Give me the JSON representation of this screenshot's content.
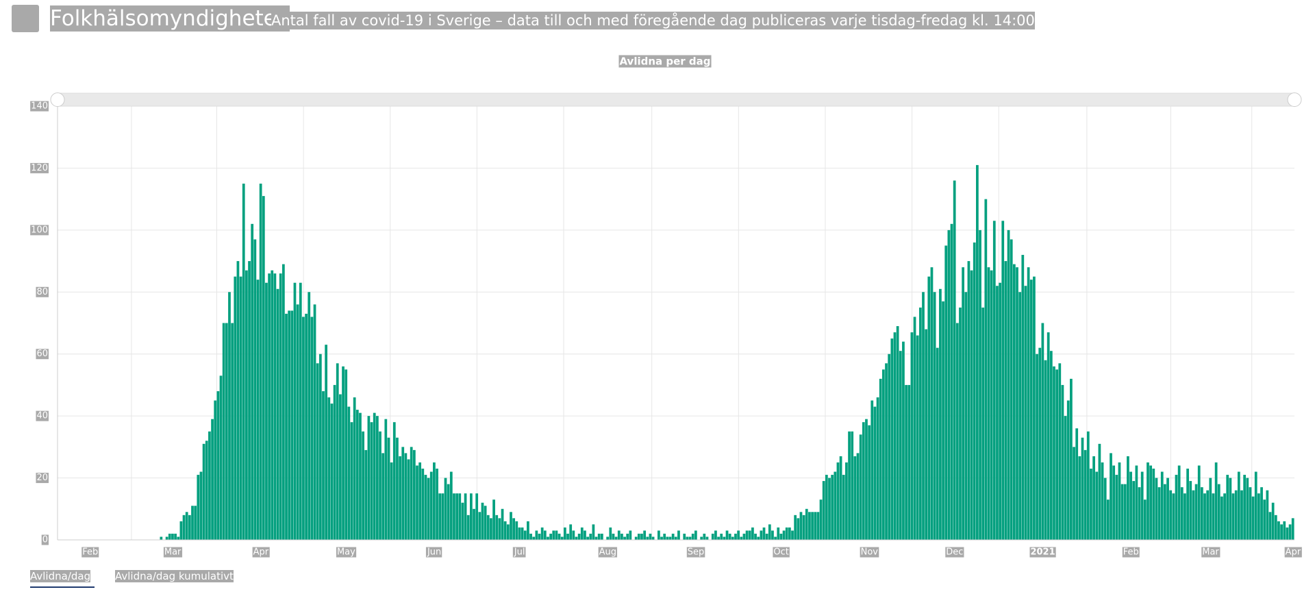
{
  "header": {
    "org": "Folkhälsomyndigheten",
    "subtitle": "Antal fall av covid-19 i Sverige – data till och med föregående dag publiceras varje tisdag-fredag kl. 14:00"
  },
  "chart_data": {
    "type": "bar",
    "title": "Avlidna per dag",
    "color": "#04a07f",
    "ylim": [
      0,
      140
    ],
    "yticks": [
      0,
      20,
      40,
      60,
      80,
      100,
      120,
      140
    ],
    "grid": true,
    "categories": [
      null,
      null,
      null,
      null,
      null,
      null,
      null,
      null,
      null,
      null,
      null,
      "Feb",
      null,
      null,
      null,
      null,
      null,
      null,
      null,
      null,
      null,
      null,
      null,
      null,
      null,
      null,
      null,
      null,
      null,
      null,
      null,
      null,
      null,
      null,
      null,
      null,
      null,
      null,
      null,
      null,
      "Mar",
      null,
      null,
      null,
      null,
      null,
      null,
      null,
      null,
      null,
      null,
      null,
      null,
      null,
      null,
      null,
      null,
      null,
      null,
      null,
      null,
      null,
      null,
      null,
      null,
      null,
      null,
      null,
      null,
      null,
      null,
      "Apr",
      null,
      null,
      null,
      null,
      null,
      null,
      null,
      null,
      null,
      null,
      null,
      null,
      null,
      null,
      null,
      null,
      null,
      null,
      null,
      null,
      null,
      null,
      null,
      null,
      null,
      null,
      null,
      null,
      null,
      "May",
      null,
      null,
      null,
      null,
      null,
      null,
      null,
      null,
      null,
      null,
      null,
      null,
      null,
      null,
      null,
      null,
      null,
      null,
      null,
      null,
      null,
      null,
      null,
      null,
      null,
      null,
      null,
      null,
      null,
      null,
      "Jun",
      null,
      null,
      null,
      null,
      null,
      null,
      null,
      null,
      null,
      null,
      null,
      null,
      null,
      null,
      null,
      null,
      null,
      null,
      null,
      null,
      null,
      null,
      null,
      null,
      null,
      null,
      null,
      null,
      null,
      "Jul",
      null,
      null,
      null,
      null,
      null,
      null,
      null,
      null,
      null,
      null,
      null,
      null,
      null,
      null,
      null,
      null,
      null,
      null,
      null,
      null,
      null,
      null,
      null,
      null,
      null,
      null,
      null,
      null,
      null,
      null,
      "Aug",
      null,
      null,
      null,
      null,
      null,
      null,
      null,
      null,
      null,
      null,
      null,
      null,
      null,
      null,
      null,
      null,
      null,
      null,
      null,
      null,
      null,
      null,
      null,
      null,
      null,
      null,
      null,
      null,
      null,
      null,
      "Sep",
      null,
      null,
      null,
      null,
      null,
      null,
      null,
      null,
      null,
      null,
      null,
      null,
      null,
      null,
      null,
      null,
      null,
      null,
      null,
      null,
      null,
      null,
      null,
      null,
      null,
      null,
      null,
      null,
      null,
      "Oct",
      null,
      null,
      null,
      null,
      null,
      null,
      null,
      null,
      null,
      null,
      null,
      null,
      null,
      null,
      null,
      null,
      null,
      null,
      null,
      null,
      null,
      null,
      null,
      null,
      null,
      null,
      null,
      null,
      null,
      null,
      "Nov",
      null,
      null,
      null,
      null,
      null,
      null,
      null,
      null,
      null,
      null,
      null,
      null,
      null,
      null,
      null,
      null,
      null,
      null,
      null,
      null,
      null,
      null,
      null,
      null,
      null,
      null,
      null,
      null,
      null,
      "Dec",
      null,
      null,
      null,
      null,
      null,
      null,
      null,
      null,
      null,
      null,
      null,
      null,
      null,
      null,
      null,
      null,
      null,
      null,
      null,
      null,
      null,
      null,
      null,
      null,
      null,
      null,
      null,
      null,
      null,
      null,
      "2021",
      null,
      null,
      null,
      null,
      null,
      null,
      null,
      null,
      null,
      null,
      null,
      null,
      null,
      null,
      null,
      null,
      null,
      null,
      null,
      null,
      null,
      null,
      null,
      null,
      null,
      null,
      null,
      null,
      null,
      null,
      "Feb",
      null,
      null,
      null,
      null,
      null,
      null,
      null,
      null,
      null,
      null,
      null,
      null,
      null,
      null,
      null,
      null,
      null,
      null,
      null,
      null,
      null,
      null,
      null,
      null,
      null,
      null,
      null,
      "Mar",
      null,
      null,
      null,
      null,
      null,
      null,
      null,
      null,
      null,
      null,
      null,
      null,
      null,
      null,
      null,
      null,
      null,
      null,
      null,
      null,
      null,
      null,
      null,
      null,
      null,
      null,
      null,
      null,
      "Apr"
    ],
    "values": [
      0,
      0,
      0,
      0,
      0,
      0,
      0,
      0,
      0,
      0,
      0,
      0,
      0,
      0,
      0,
      0,
      0,
      0,
      0,
      0,
      0,
      0,
      0,
      0,
      0,
      0,
      0,
      0,
      0,
      0,
      0,
      0,
      0,
      0,
      0,
      0,
      1,
      0,
      1,
      2,
      2,
      2,
      1,
      6,
      8,
      9,
      8,
      11,
      11,
      21,
      22,
      31,
      32,
      35,
      39,
      45,
      48,
      53,
      70,
      70,
      80,
      70,
      85,
      90,
      85,
      115,
      87,
      90,
      102,
      97,
      84,
      115,
      111,
      83,
      86,
      87,
      86,
      81,
      86,
      89,
      73,
      74,
      74,
      83,
      76,
      83,
      72,
      73,
      80,
      72,
      76,
      57,
      60,
      48,
      63,
      46,
      44,
      50,
      57,
      47,
      56,
      55,
      43,
      38,
      46,
      42,
      41,
      35,
      29,
      40,
      38,
      41,
      40,
      35,
      28,
      39,
      33,
      25,
      38,
      33,
      27,
      30,
      28,
      26,
      30,
      29,
      24,
      25,
      23,
      21,
      20,
      22,
      25,
      23,
      15,
      15,
      20,
      18,
      22,
      15,
      15,
      15,
      12,
      15,
      8,
      15,
      10,
      15,
      9,
      12,
      11,
      8,
      7,
      13,
      8,
      7,
      10,
      6,
      5,
      9,
      7,
      6,
      4,
      4,
      3,
      6,
      2,
      1,
      3,
      2,
      4,
      3,
      1,
      2,
      3,
      3,
      2,
      1,
      4,
      2,
      5,
      3,
      1,
      2,
      4,
      3,
      1,
      2,
      5,
      1,
      2,
      2,
      0,
      1,
      4,
      2,
      1,
      3,
      2,
      1,
      2,
      3,
      0,
      1,
      2,
      2,
      3,
      1,
      2,
      1,
      0,
      3,
      1,
      2,
      1,
      1,
      2,
      1,
      3,
      0,
      2,
      1,
      1,
      2,
      3,
      0,
      1,
      2,
      1,
      0,
      2,
      3,
      1,
      2,
      1,
      3,
      2,
      1,
      2,
      3,
      1,
      2,
      3,
      3,
      4,
      2,
      1,
      3,
      4,
      2,
      5,
      3,
      1,
      4,
      2,
      3,
      4,
      4,
      3,
      8,
      7,
      9,
      8,
      10,
      9,
      9,
      9,
      9,
      13,
      19,
      21,
      20,
      21,
      22,
      25,
      27,
      21,
      25,
      35,
      35,
      27,
      28,
      34,
      38,
      39,
      37,
      45,
      43,
      46,
      52,
      55,
      57,
      60,
      65,
      67,
      69,
      61,
      64,
      50,
      50,
      67,
      72,
      66,
      75,
      80,
      68,
      85,
      88,
      80,
      62,
      81,
      77,
      95,
      100,
      102,
      116,
      70,
      75,
      88,
      80,
      90,
      87,
      96,
      121,
      100,
      75,
      110,
      88,
      87,
      103,
      82,
      83,
      103,
      90,
      100,
      97,
      89,
      88,
      80,
      92,
      82,
      88,
      84,
      85,
      60,
      62,
      70,
      58,
      67,
      61,
      56,
      55,
      57,
      50,
      40,
      45,
      52,
      30,
      36,
      27,
      33,
      29,
      35,
      23,
      27,
      22,
      31,
      25,
      20,
      13,
      28,
      24,
      21,
      25,
      18,
      18,
      27,
      22,
      19,
      24,
      17,
      22,
      13,
      25,
      24,
      23,
      20,
      17,
      22,
      18,
      20,
      16,
      15,
      21,
      24,
      17,
      15,
      23,
      19,
      16,
      18,
      24,
      17,
      15,
      16,
      20,
      15,
      25,
      18,
      14,
      15,
      21,
      20,
      15,
      16,
      22,
      16,
      21,
      20,
      17,
      14,
      22,
      15,
      17,
      13,
      16,
      9,
      12,
      8,
      6,
      5,
      6,
      4,
      5,
      7
    ]
  },
  "tabs": [
    "Avlidna/dag",
    "Avlidna/dag kumulativt"
  ]
}
